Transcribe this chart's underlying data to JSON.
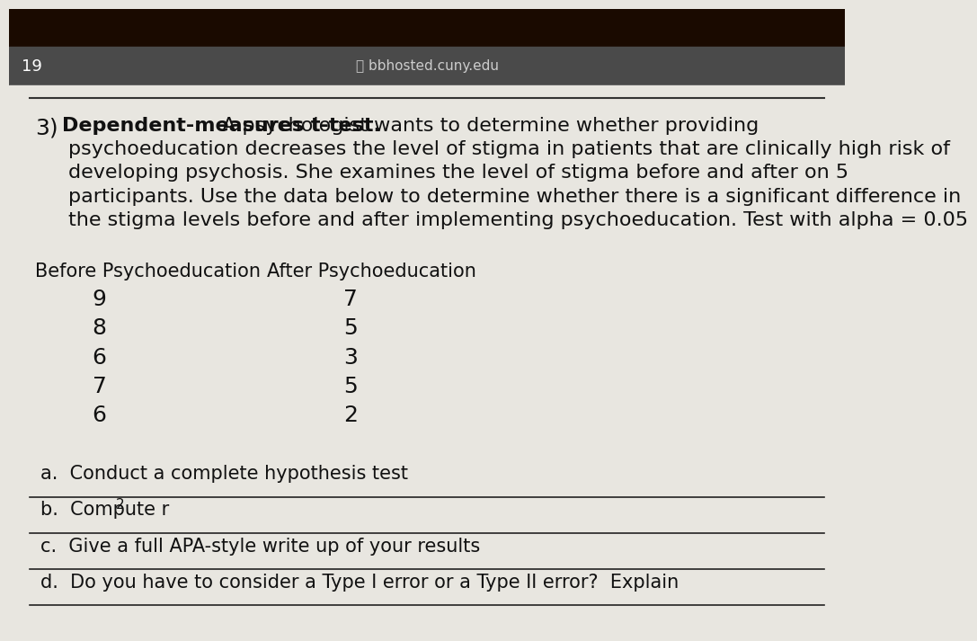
{
  "page_number": "19",
  "browser_bar_text": "bbhosted.cuny.edu",
  "question_number": "3)",
  "question_bold_part": "Dependent-measures t-test.",
  "question_text_line1": " A psychologist wants to determine whether providing",
  "question_text_line2": "psychoeducation decreases the level of stigma in patients that are clinically high risk of",
  "question_text_line3": "developing psychosis. She examines the level of stigma before and after on 5",
  "question_text_line4": "participants. Use the data below to determine whether there is a significant difference in",
  "question_text_line5": "the stigma levels before and after implementing psychoeducation. Test with alpha = 0.05",
  "col1_header": "Before Psychoeducation",
  "col2_header": "After Psychoeducation",
  "before": [
    9,
    8,
    6,
    7,
    6
  ],
  "after": [
    7,
    5,
    3,
    5,
    2
  ],
  "sub_q_a": "a.  Conduct a complete hypothesis test",
  "sub_q_b_prefix": "b.  Compute r",
  "sub_q_b_super": "2",
  "sub_q_c": "c.  Give a full APA-style write up of your results",
  "sub_q_d": "d.  Do you have to consider a Type I error or a Type II error?  Explain",
  "bg_very_dark": "#1a0a00",
  "bg_dark_bar": "#4a4a4a",
  "bg_content": "#e8e6e0",
  "text_color": "#111111",
  "lock_color": "#aaaaaa",
  "font_size_body": 16,
  "font_size_data": 18,
  "font_size_header": 15,
  "font_size_subq": 15
}
